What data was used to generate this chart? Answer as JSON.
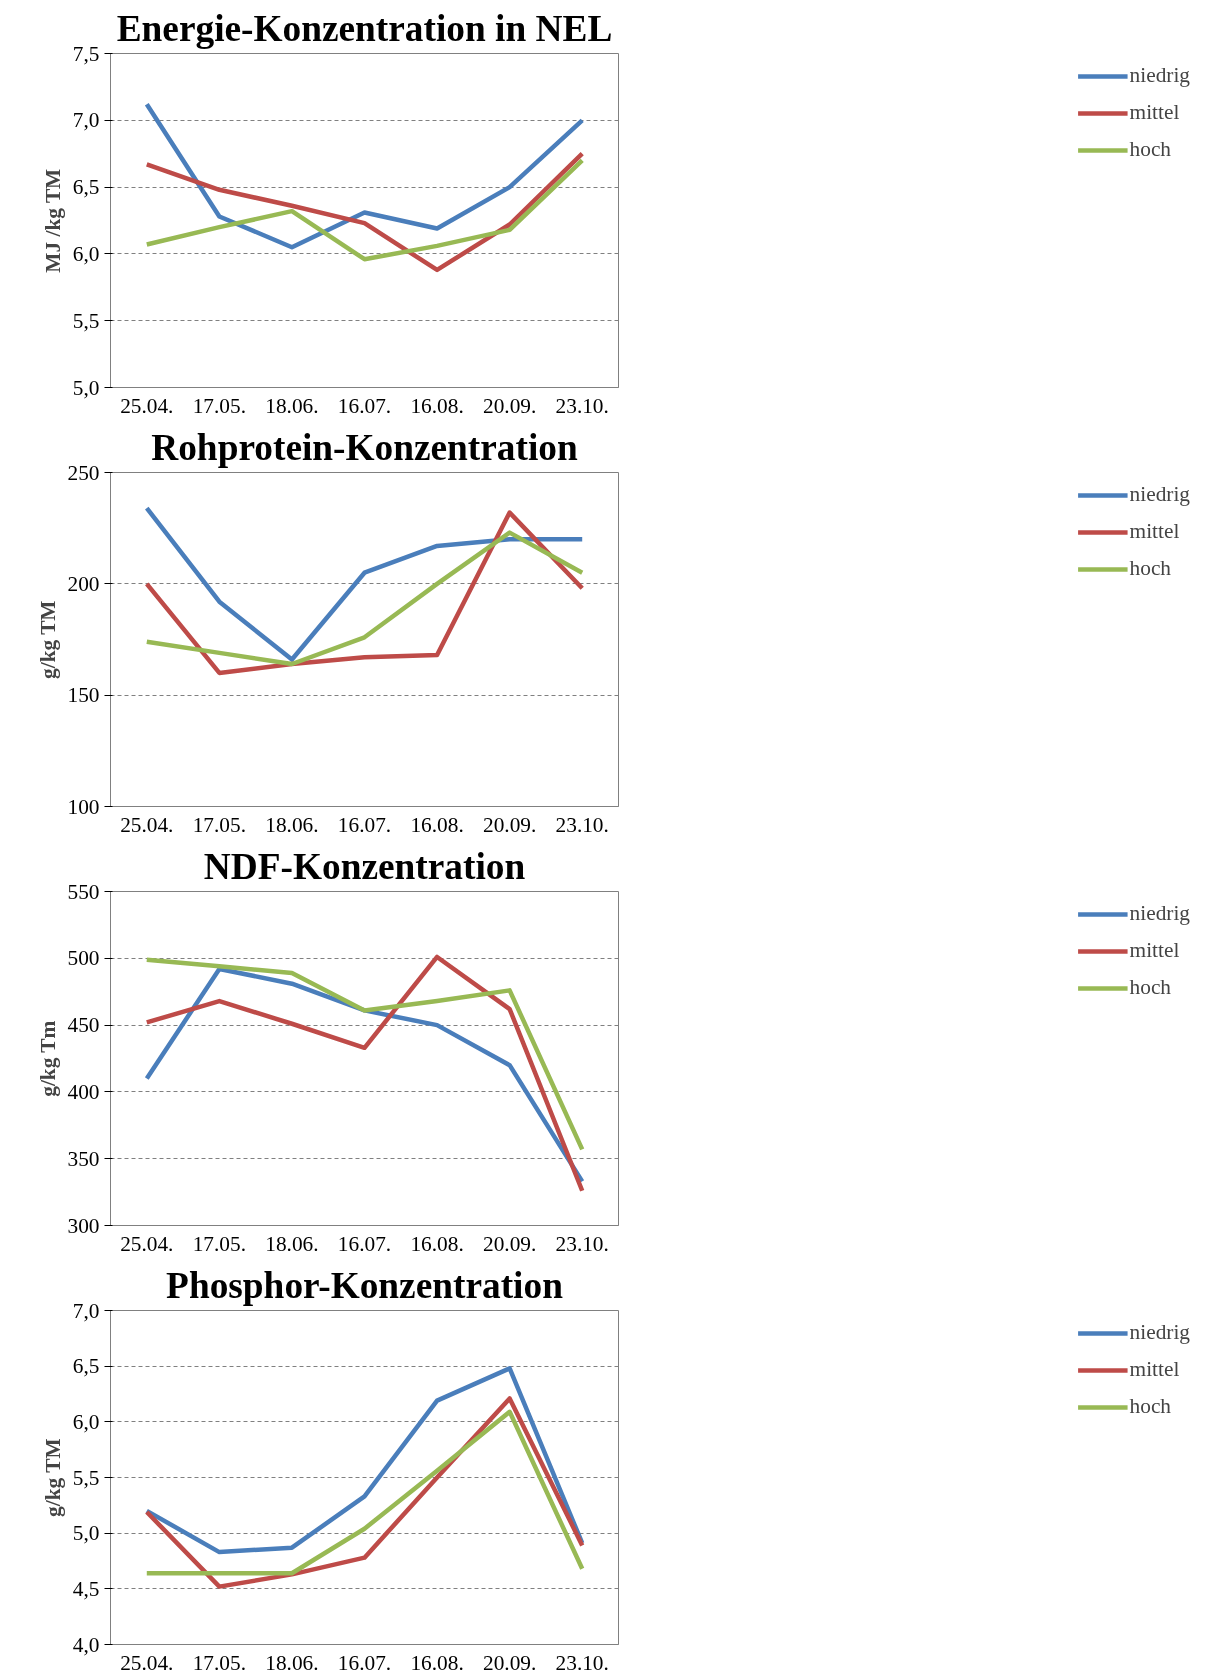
{
  "chart_data": [
    {
      "type": "line",
      "title": "Energie-Konzentration in NEL",
      "ylabel": "MJ /kg TM",
      "categories": [
        "25.04.",
        "17.05.",
        "18.06.",
        "16.07.",
        "16.08.",
        "20.09.",
        "23.10."
      ],
      "ylim": [
        5.0,
        7.5
      ],
      "yticks": [
        {
          "value": 5.0,
          "label": "5,0"
        },
        {
          "value": 5.5,
          "label": "5,5"
        },
        {
          "value": 6.0,
          "label": "6,0"
        },
        {
          "value": 6.5,
          "label": "6,5"
        },
        {
          "value": 7.0,
          "label": "7,0"
        },
        {
          "value": 7.5,
          "label": "7,5"
        }
      ],
      "grid": "y",
      "legend": "right",
      "series": [
        {
          "name": "niedrig",
          "color": "#4a7ebb",
          "values": [
            7.12,
            6.28,
            6.05,
            6.31,
            6.19,
            6.5,
            7.0
          ]
        },
        {
          "name": "mittel",
          "color": "#be4b48",
          "values": [
            6.67,
            6.48,
            6.36,
            6.23,
            5.88,
            6.22,
            6.75
          ]
        },
        {
          "name": "hoch",
          "color": "#98b954",
          "values": [
            6.07,
            6.2,
            6.32,
            5.96,
            6.06,
            6.18,
            6.7
          ]
        }
      ]
    },
    {
      "type": "line",
      "title": "Rohprotein-Konzentration",
      "ylabel": "g/kg TM",
      "categories": [
        "25.04.",
        "17.05.",
        "18.06.",
        "16.07.",
        "16.08.",
        "20.09.",
        "23.10."
      ],
      "ylim": [
        100,
        250
      ],
      "yticks": [
        100,
        150,
        200,
        250
      ],
      "grid": "y",
      "legend": "right",
      "series": [
        {
          "name": "niedrig",
          "color": "#4a7ebb",
          "values": [
            234,
            192,
            166,
            205,
            217,
            220,
            220
          ]
        },
        {
          "name": "mittel",
          "color": "#be4b48",
          "values": [
            200,
            160,
            164,
            167,
            168,
            232,
            198
          ]
        },
        {
          "name": "hoch",
          "color": "#98b954",
          "values": [
            174,
            169,
            164,
            176,
            200,
            223,
            205
          ]
        }
      ]
    },
    {
      "type": "line",
      "title": "NDF-Konzentration",
      "ylabel": "g/kg Tm",
      "categories": [
        "25.04.",
        "17.05.",
        "18.06.",
        "16.07.",
        "16.08.",
        "20.09.",
        "23.10."
      ],
      "ylim": [
        300,
        550
      ],
      "yticks": [
        300,
        350,
        400,
        450,
        500,
        550
      ],
      "grid": "y",
      "legend": "right",
      "series": [
        {
          "name": "niedrig",
          "color": "#4a7ebb",
          "values": [
            410,
            492,
            481,
            461,
            450,
            420,
            333
          ]
        },
        {
          "name": "mittel",
          "color": "#be4b48",
          "values": [
            452,
            468,
            451,
            433,
            501,
            462,
            326
          ]
        },
        {
          "name": "hoch",
          "color": "#98b954",
          "values": [
            499,
            494,
            489,
            461,
            468,
            476,
            357
          ]
        }
      ]
    },
    {
      "type": "line",
      "title": "Phosphor-Konzentration",
      "ylabel": "g/kg TM",
      "categories": [
        "25.04.",
        "17.05.",
        "18.06.",
        "16.07.",
        "16.08.",
        "20.09.",
        "23.10."
      ],
      "ylim": [
        4.0,
        7.0
      ],
      "yticks": [
        {
          "value": 4.0,
          "label": "4,0"
        },
        {
          "value": 4.5,
          "label": "4,5"
        },
        {
          "value": 5.0,
          "label": "5,0"
        },
        {
          "value": 5.5,
          "label": "5,5"
        },
        {
          "value": 6.0,
          "label": "6,0"
        },
        {
          "value": 6.5,
          "label": "6,5"
        },
        {
          "value": 7.0,
          "label": "7,0"
        }
      ],
      "grid": "y",
      "legend": "right",
      "series": [
        {
          "name": "niedrig",
          "color": "#4a7ebb",
          "values": [
            5.2,
            4.83,
            4.87,
            5.33,
            6.19,
            6.48,
            4.91
          ]
        },
        {
          "name": "mittel",
          "color": "#be4b48",
          "values": [
            5.19,
            4.52,
            4.63,
            4.78,
            5.5,
            6.21,
            4.89
          ]
        },
        {
          "name": "hoch",
          "color": "#98b954",
          "values": [
            4.64,
            4.64,
            4.64,
            5.04,
            5.56,
            6.09,
            4.68
          ]
        }
      ]
    }
  ]
}
